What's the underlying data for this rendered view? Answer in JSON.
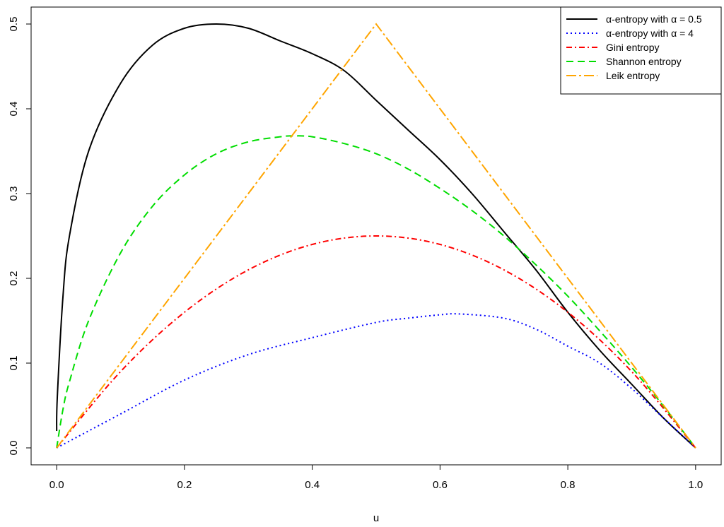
{
  "chart_data": {
    "type": "line",
    "xlabel": "u",
    "ylabel": "",
    "xlim": [
      -0.04,
      1.04
    ],
    "ylim": [
      -0.02,
      0.52
    ],
    "xticks": [
      "0.0",
      "0.2",
      "0.4",
      "0.6",
      "0.8",
      "1.0"
    ],
    "xtick_values": [
      0,
      0.2,
      0.4,
      0.6,
      0.8,
      1.0
    ],
    "yticks": [
      "0.0",
      "0.1",
      "0.2",
      "0.3",
      "0.4",
      "0.5"
    ],
    "ytick_values": [
      0,
      0.1,
      0.2,
      0.3,
      0.4,
      0.5
    ],
    "grid": false,
    "legend_position": "top-right",
    "series": [
      {
        "name": "α-entropy with α = 0.5",
        "color": "#000000",
        "dash": "solid",
        "x": [
          0.0,
          0.001,
          0.01,
          0.02,
          0.05,
          0.1,
          0.15,
          0.2,
          0.25,
          0.3,
          0.35,
          0.4,
          0.45,
          0.5,
          0.55,
          0.6,
          0.65,
          0.7,
          0.75,
          0.8,
          0.85,
          0.9,
          0.95,
          1.0
        ],
        "y": [
          0.02,
          0.06,
          0.18,
          0.25,
          0.35,
          0.43,
          0.475,
          0.495,
          0.5,
          0.495,
          0.48,
          0.465,
          0.445,
          0.41,
          0.375,
          0.34,
          0.3,
          0.255,
          0.21,
          0.16,
          0.115,
          0.075,
          0.035,
          0.0
        ]
      },
      {
        "name": "α-entropy with α = 4",
        "color": "#0000ff",
        "dash": "dotted",
        "x": [
          0.0,
          0.1,
          0.2,
          0.3,
          0.4,
          0.5,
          0.55,
          0.6,
          0.63,
          0.7,
          0.75,
          0.8,
          0.85,
          0.9,
          0.95,
          1.0
        ],
        "y": [
          0.0,
          0.04,
          0.08,
          0.11,
          0.13,
          0.148,
          0.153,
          0.157,
          0.158,
          0.153,
          0.14,
          0.12,
          0.1,
          0.07,
          0.035,
          0.0
        ]
      },
      {
        "name": "Gini entropy",
        "color": "#ff0000",
        "dash": "dashdot",
        "x": [
          0.0,
          0.1,
          0.2,
          0.3,
          0.4,
          0.5,
          0.6,
          0.7,
          0.8,
          0.9,
          1.0
        ],
        "y": [
          0.0,
          0.09,
          0.16,
          0.21,
          0.24,
          0.25,
          0.24,
          0.21,
          0.16,
          0.09,
          0.0
        ]
      },
      {
        "name": "Shannon entropy",
        "color": "#00dd00",
        "dash": "dashed",
        "x": [
          0.0,
          0.01,
          0.02,
          0.05,
          0.1,
          0.15,
          0.2,
          0.25,
          0.3,
          0.35,
          0.3679,
          0.4,
          0.45,
          0.5,
          0.55,
          0.6,
          0.65,
          0.7,
          0.75,
          0.8,
          0.85,
          0.9,
          0.95,
          1.0
        ],
        "y": [
          0.0,
          0.046,
          0.078,
          0.15,
          0.23,
          0.285,
          0.322,
          0.347,
          0.361,
          0.367,
          0.368,
          0.367,
          0.359,
          0.347,
          0.329,
          0.306,
          0.28,
          0.25,
          0.216,
          0.179,
          0.138,
          0.095,
          0.049,
          0.0
        ]
      },
      {
        "name": "Leik entropy",
        "color": "#ffa500",
        "dash": "longdash",
        "x": [
          0.0,
          0.5,
          1.0
        ],
        "y": [
          0.0,
          0.5,
          0.0
        ]
      }
    ]
  }
}
